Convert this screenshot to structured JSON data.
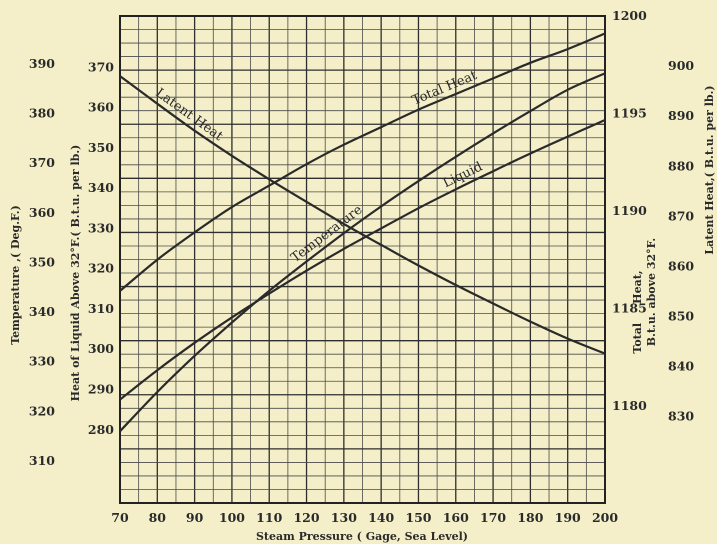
{
  "chart_data": {
    "type": "line",
    "xlabel": "Steam Pressure ( Gage, Sea Level)",
    "x_ticks": [
      70,
      80,
      90,
      100,
      110,
      120,
      130,
      140,
      150,
      160,
      170,
      180,
      190,
      200
    ],
    "xlim": [
      70,
      200
    ],
    "grid": true,
    "axes": {
      "temperature": {
        "label": "Temperature ,( Deg.F.)",
        "ticks": [
          390,
          380,
          370,
          360,
          350,
          340,
          330,
          320,
          310
        ],
        "lim": [
          301.54,
          399.66
        ]
      },
      "heat_of_liquid": {
        "label": "Heat of Liquid Above 32°F.( B.t.u. per lb.)",
        "ticks": [
          370,
          360,
          350,
          340,
          330,
          320,
          310,
          300,
          290,
          280
        ],
        "lim": [
          261.82,
          382.73
        ]
      },
      "total_heat": {
        "label_line1": "Total     Heat,",
        "label_line2": "B.t.u. above 32°F.",
        "ticks": [
          1200,
          1195,
          1190,
          1185,
          1180
        ],
        "lim": [
          1175.02,
          1200.0
        ]
      },
      "latent_heat": {
        "label": "Latent Heat,( B.t.u. per lb.)",
        "ticks": [
          900,
          890,
          880,
          870,
          860,
          850,
          840,
          830
        ],
        "lim": [
          812.78,
          910.0
        ]
      }
    },
    "series": [
      {
        "name": "Total Heat",
        "axis": "total_heat",
        "x": [
          70,
          80,
          90,
          100,
          110,
          120,
          130,
          140,
          150,
          160,
          170,
          180,
          190,
          200
        ],
        "y": [
          1185.9,
          1187.5,
          1188.9,
          1190.2,
          1191.3,
          1192.4,
          1193.4,
          1194.3,
          1195.2,
          1196.0,
          1196.8,
          1197.6,
          1198.3,
          1199.1
        ]
      },
      {
        "name": "Liquid",
        "axis": "heat_of_liquid",
        "x": [
          70,
          80,
          90,
          100,
          110,
          120,
          130,
          140,
          150,
          160,
          170,
          180,
          190,
          200
        ],
        "y": [
          287.5,
          294.8,
          301.6,
          307.9,
          313.8,
          319.5,
          324.9,
          330.0,
          335.0,
          339.7,
          344.2,
          348.6,
          352.8,
          356.9
        ]
      },
      {
        "name": "Temperature",
        "axis": "temperature",
        "x": [
          70,
          80,
          90,
          100,
          110,
          120,
          130,
          140,
          150,
          160,
          170,
          180,
          190,
          200
        ],
        "y": [
          316.0,
          323.9,
          331.2,
          337.9,
          344.3,
          350.2,
          355.9,
          361.3,
          366.4,
          371.3,
          376.0,
          380.5,
          384.8,
          388.1
        ]
      },
      {
        "name": "Latent Heat",
        "axis": "latent_heat",
        "x": [
          70,
          80,
          90,
          100,
          110,
          120,
          130,
          140,
          150,
          160,
          170,
          180,
          190,
          200
        ],
        "y": [
          898.0,
          892.5,
          887.1,
          882.1,
          877.4,
          872.9,
          868.5,
          864.3,
          860.2,
          856.3,
          852.6,
          849.0,
          845.6,
          842.6
        ]
      }
    ]
  }
}
